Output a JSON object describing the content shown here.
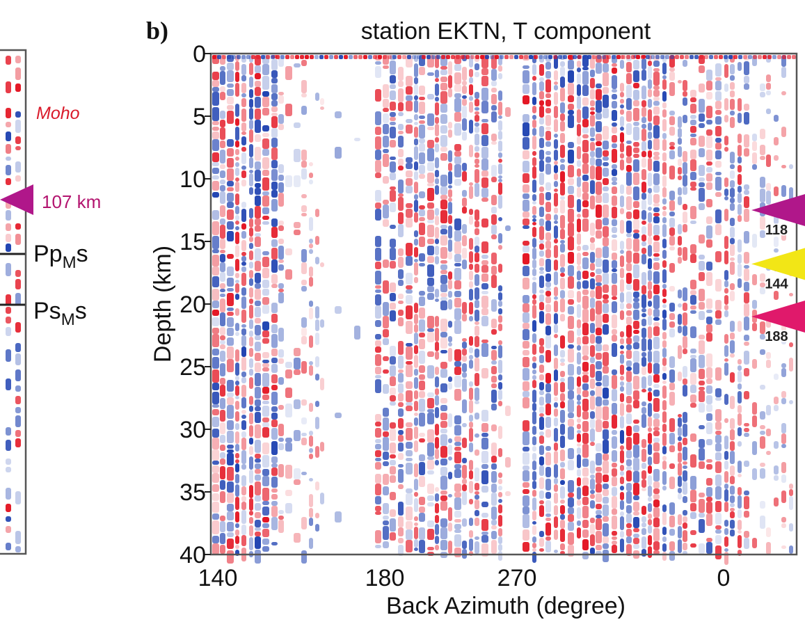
{
  "colors": {
    "positive": "#e3101e",
    "negative": "#1b3fb0",
    "frame": "#555555",
    "moho_label": "#d91a2a",
    "km_label": "#b3146f",
    "marker_magenta": "#b0178a",
    "marker_yellow": "#f2e616",
    "marker_pink": "#e0196b"
  },
  "left_panel": {
    "moho_label": "Moho",
    "depth_label": "107 km",
    "ppms": {
      "p1": "Pp",
      "sub": "M",
      "p2": "s"
    },
    "psms": {
      "p1": "Ps",
      "sub": "M",
      "p2": "s"
    }
  },
  "chart_data": {
    "type": "heatmap",
    "panel_label": "b)",
    "title": "station EKTN, T component",
    "xlabel": "Back Azimuth (degree)",
    "ylabel": "Depth (km)",
    "x_tick_labels": [
      "140",
      "180",
      "270",
      "0"
    ],
    "y_ticks": [
      0,
      5,
      10,
      15,
      20,
      25,
      30,
      35,
      40
    ],
    "ylim": [
      0,
      40
    ],
    "y_inverted": true,
    "color_scale": {
      "positive": "red",
      "negative": "blue",
      "zero": "white"
    },
    "depth_markers": [
      {
        "label": "118",
        "depth_km": 12.5,
        "color": "magenta"
      },
      {
        "label": "144",
        "depth_km": 16.8,
        "color": "yellow"
      },
      {
        "label": "188",
        "depth_km": 21.0,
        "color": "pink"
      }
    ]
  }
}
